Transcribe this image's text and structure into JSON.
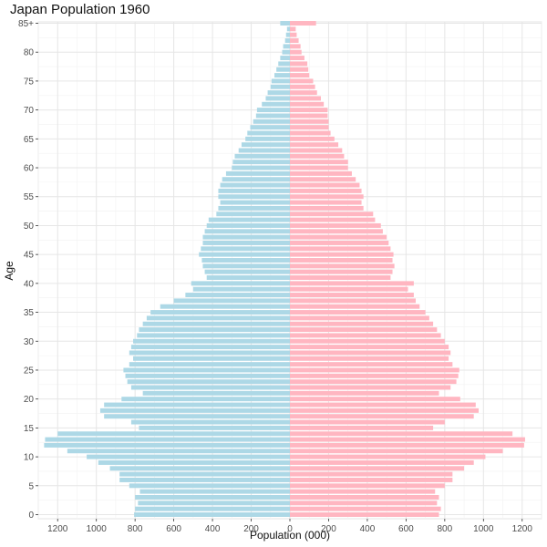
{
  "chart_data": {
    "type": "bar",
    "orientation": "horizontal-mirrored",
    "title": "Japan Population 1960",
    "xlabel": "Population (000)",
    "ylabel": "Age",
    "xlim": [
      -1300,
      1300
    ],
    "x_ticks": [
      -1200,
      -1000,
      -800,
      -600,
      -400,
      -200,
      0,
      200,
      400,
      600,
      800,
      1000,
      1200
    ],
    "x_tick_labels": [
      "1200",
      "1000",
      "800",
      "600",
      "400",
      "200",
      "0",
      "200",
      "400",
      "600",
      "800",
      "1000",
      "1200"
    ],
    "y_ticks": [
      0,
      5,
      10,
      15,
      20,
      25,
      30,
      35,
      40,
      45,
      50,
      55,
      60,
      65,
      70,
      75,
      80,
      85
    ],
    "y_tick_labels": [
      "0",
      "5",
      "10",
      "15",
      "20",
      "25",
      "30",
      "35",
      "40",
      "45",
      "50",
      "55",
      "60",
      "65",
      "70",
      "75",
      "80",
      "85+"
    ],
    "grid": true,
    "legend": "none",
    "colors": {
      "male": "#add8e6",
      "female": "#ffb6c1"
    },
    "categories": [
      "0",
      "1",
      "2",
      "3",
      "4",
      "5",
      "6",
      "7",
      "8",
      "9",
      "10",
      "11",
      "12",
      "13",
      "14",
      "15",
      "16",
      "17",
      "18",
      "19",
      "20",
      "21",
      "22",
      "23",
      "24",
      "25",
      "26",
      "27",
      "28",
      "29",
      "30",
      "31",
      "32",
      "33",
      "34",
      "35",
      "36",
      "37",
      "38",
      "39",
      "40",
      "41",
      "42",
      "43",
      "44",
      "45",
      "46",
      "47",
      "48",
      "49",
      "50",
      "51",
      "52",
      "53",
      "54",
      "55",
      "56",
      "57",
      "58",
      "59",
      "60",
      "61",
      "62",
      "63",
      "64",
      "65",
      "66",
      "67",
      "68",
      "69",
      "70",
      "71",
      "72",
      "73",
      "74",
      "75",
      "76",
      "77",
      "78",
      "79",
      "80",
      "81",
      "82",
      "83",
      "84",
      "85+"
    ],
    "series": [
      {
        "values": [
          805,
          800,
          785,
          800,
          775,
          830,
          880,
          880,
          930,
          990,
          1050,
          1150,
          1270,
          1265,
          1200,
          780,
          820,
          960,
          980,
          960,
          870,
          760,
          820,
          840,
          850,
          860,
          830,
          810,
          830,
          820,
          810,
          790,
          780,
          760,
          740,
          720,
          670,
          600,
          540,
          500,
          510,
          430,
          440,
          450,
          455,
          470,
          460,
          450,
          450,
          440,
          430,
          420,
          380,
          370,
          360,
          370,
          370,
          360,
          350,
          330,
          300,
          295,
          285,
          265,
          250,
          230,
          220,
          205,
          190,
          175,
          170,
          145,
          125,
          115,
          100,
          95,
          80,
          70,
          60,
          50,
          40,
          35,
          25,
          20,
          15,
          50
        ]
      },
      {
        "values": [
          770,
          780,
          760,
          770,
          750,
          800,
          840,
          840,
          900,
          950,
          1010,
          1100,
          1210,
          1215,
          1150,
          740,
          800,
          950,
          975,
          960,
          880,
          770,
          830,
          860,
          870,
          875,
          840,
          820,
          830,
          820,
          800,
          780,
          760,
          740,
          720,
          700,
          670,
          650,
          640,
          610,
          640,
          520,
          530,
          540,
          530,
          535,
          520,
          510,
          500,
          480,
          470,
          440,
          430,
          380,
          370,
          380,
          370,
          360,
          340,
          320,
          300,
          300,
          280,
          270,
          250,
          230,
          210,
          200,
          200,
          195,
          195,
          175,
          160,
          140,
          130,
          120,
          100,
          95,
          90,
          75,
          60,
          55,
          45,
          35,
          30,
          135
        ]
      }
    ]
  }
}
